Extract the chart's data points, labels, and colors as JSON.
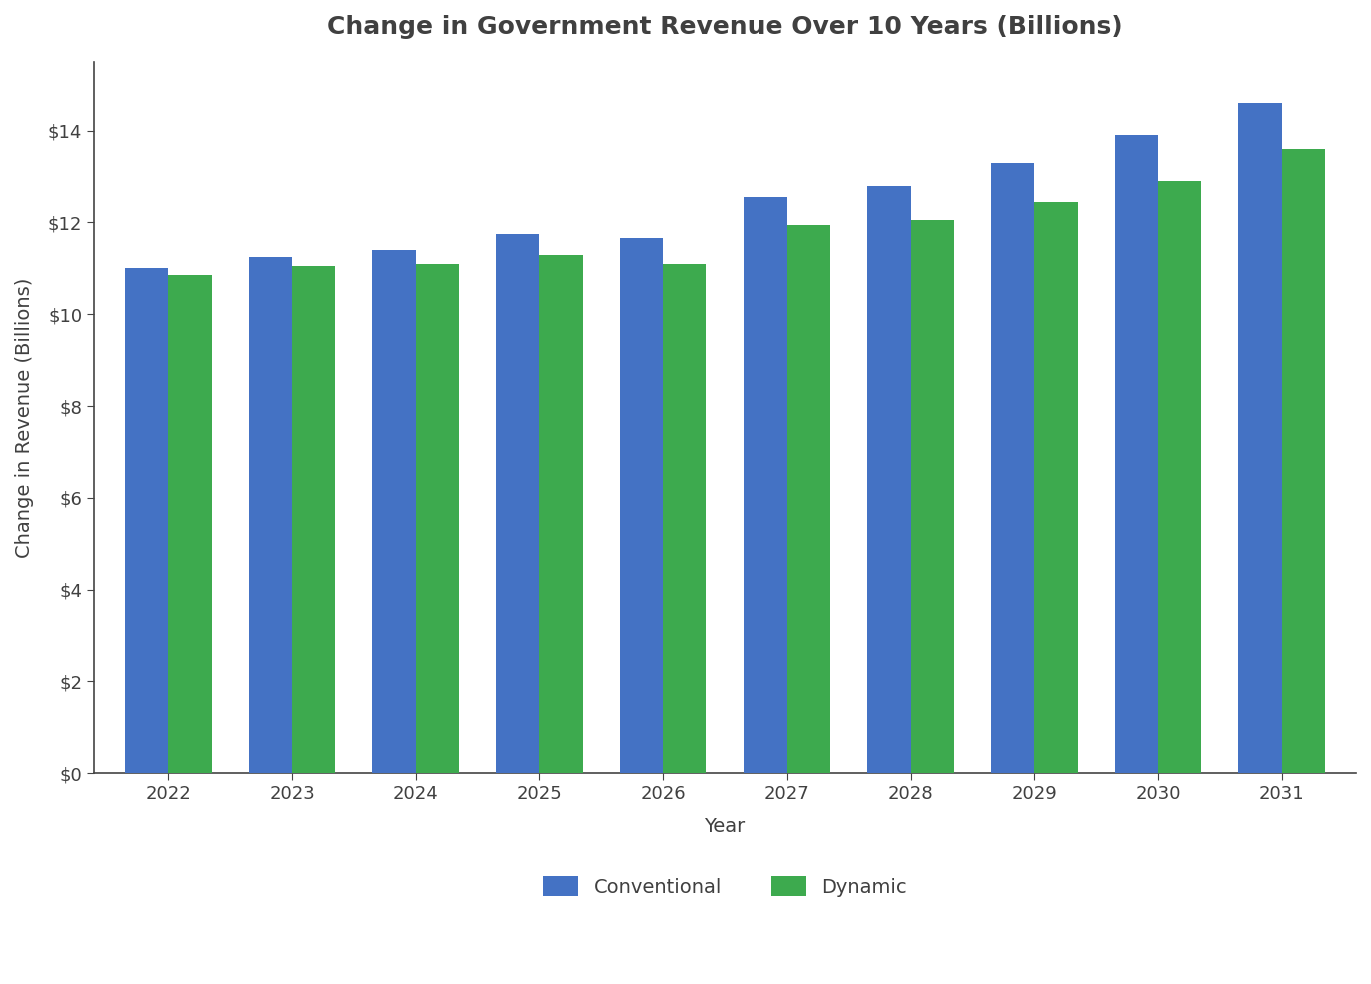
{
  "title": "Change in Government Revenue Over 10 Years (Billions)",
  "xlabel": "Year",
  "ylabel": "Change in Revenue (Billions)",
  "years": [
    2022,
    2023,
    2024,
    2025,
    2026,
    2027,
    2028,
    2029,
    2030,
    2031
  ],
  "conventional": [
    11.0,
    11.25,
    11.4,
    11.75,
    11.65,
    12.55,
    12.8,
    13.3,
    13.9,
    14.6
  ],
  "dynamic": [
    10.85,
    11.05,
    11.1,
    11.3,
    11.1,
    11.95,
    12.05,
    12.45,
    12.9,
    13.6
  ],
  "conventional_color": "#4472C4",
  "dynamic_color": "#3DAA4E",
  "background_color": "#FFFFFF",
  "title_color": "#404040",
  "axis_label_color": "#404040",
  "tick_label_color": "#404040",
  "ylim": [
    0,
    15.5
  ],
  "yticks": [
    0,
    2,
    4,
    6,
    8,
    10,
    12,
    14
  ],
  "bar_width": 0.35,
  "legend_labels": [
    "Conventional",
    "Dynamic"
  ],
  "title_fontsize": 18,
  "label_fontsize": 14,
  "tick_fontsize": 13,
  "legend_fontsize": 14,
  "spine_color": "#444444"
}
